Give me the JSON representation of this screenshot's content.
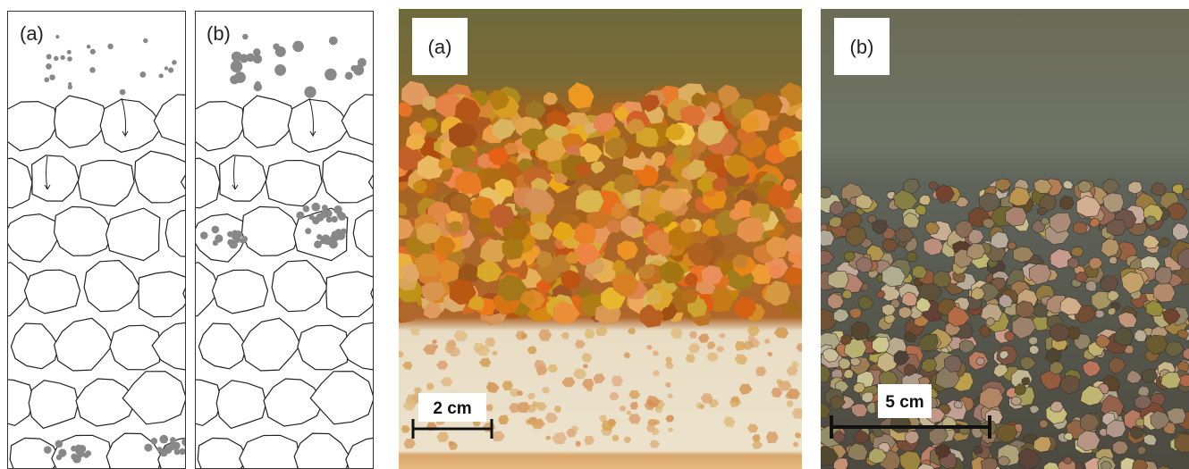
{
  "panels": [
    {
      "label": "(a)"
    },
    {
      "label": "(b)"
    },
    {
      "label": "(a)",
      "scale": "2 cm"
    },
    {
      "label": "(b)",
      "scale": "5 cm"
    }
  ]
}
